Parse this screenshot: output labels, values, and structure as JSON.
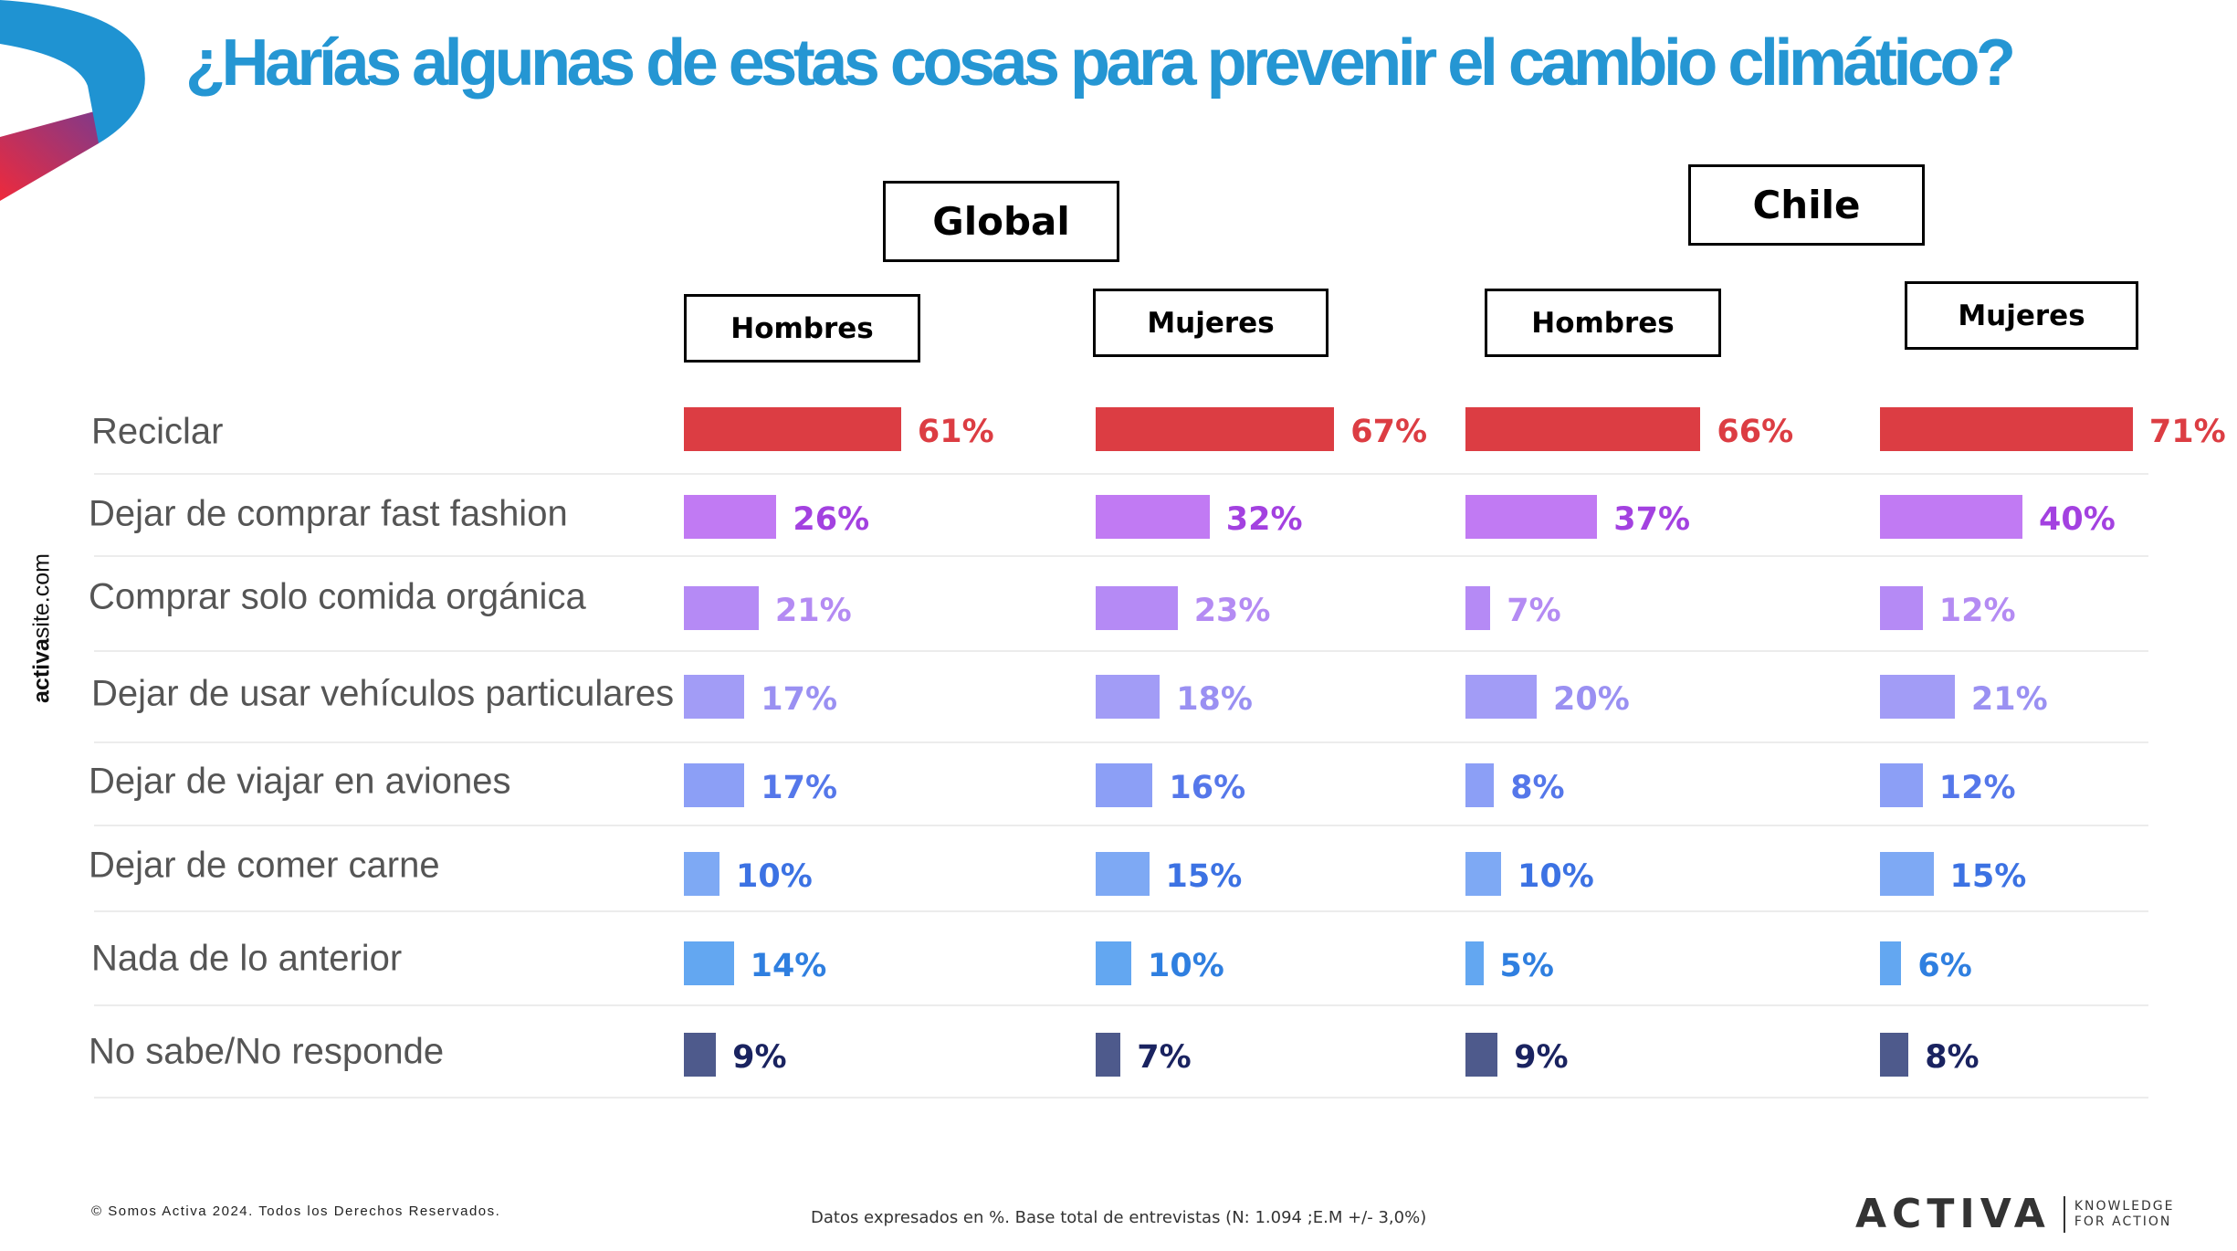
{
  "page": {
    "title": "¿Harías algunas de estas cosas para prevenir el cambio climático?",
    "side_text_bold": "activa",
    "side_text_rest": "site.com",
    "footer_left": "© Somos Activa 2024. Todos los Derechos Reservados.",
    "footer_note": "Datos expresados en %. Base total de entrevistas (N: 1.094 ;E.M +/- 3,0%)",
    "brand_name": "ACTIVA",
    "brand_tagline_1": "KNOWLEDGE",
    "brand_tagline_2": "FOR ACTION"
  },
  "colors": {
    "title": "#2596d3",
    "rows": [
      "#dc3d43",
      "#c17af3",
      "#b58af5",
      "#a29cf6",
      "#8c9ff6",
      "#7ea9f4",
      "#63a7f1",
      "#4e5a8c"
    ],
    "labels": [
      "#dc3d43",
      "#a341e0",
      "#b48bf3",
      "#9a90f2",
      "#5577ea",
      "#3c72e3",
      "#2f7fe0",
      "#1a2360"
    ]
  },
  "chart_data": {
    "type": "bar",
    "orientation": "horizontal",
    "unit": "%",
    "groups": [
      {
        "label": "Global",
        "subgroups": [
          "Hombres",
          "Mujeres"
        ]
      },
      {
        "label": "Chile",
        "subgroups": [
          "Hombres",
          "Mujeres"
        ]
      }
    ],
    "categories": [
      "Reciclar",
      "Dejar de comprar fast fashion",
      "Comprar solo comida orgánica",
      "Dejar de usar vehículos particulares",
      "Dejar de viajar en aviones",
      "Dejar de comer carne",
      "Nada de lo anterior",
      "No sabe/No responde"
    ],
    "series": [
      {
        "group": "Global",
        "subgroup": "Hombres",
        "values": [
          61,
          26,
          21,
          17,
          17,
          10,
          14,
          9
        ]
      },
      {
        "group": "Global",
        "subgroup": "Mujeres",
        "values": [
          67,
          32,
          23,
          18,
          16,
          15,
          10,
          7
        ]
      },
      {
        "group": "Chile",
        "subgroup": "Hombres",
        "values": [
          66,
          37,
          7,
          20,
          8,
          10,
          5,
          9
        ]
      },
      {
        "group": "Chile",
        "subgroup": "Mujeres",
        "values": [
          71,
          40,
          12,
          21,
          12,
          15,
          6,
          8
        ]
      }
    ],
    "value_labels": [
      [
        "61%",
        "26%",
        "21%",
        "17%",
        "17%",
        "10%",
        "14%",
        "9%"
      ],
      [
        "67%",
        "32%",
        "23%",
        "18%",
        "16%",
        "15%",
        "10%",
        "7%"
      ],
      [
        "66%",
        "37%",
        "7%",
        "20%",
        "8%",
        "10%",
        "5%",
        "9%"
      ],
      [
        "71%",
        "40%",
        "12%",
        "21%",
        "12%",
        "15%",
        "6%",
        "8%"
      ]
    ]
  }
}
